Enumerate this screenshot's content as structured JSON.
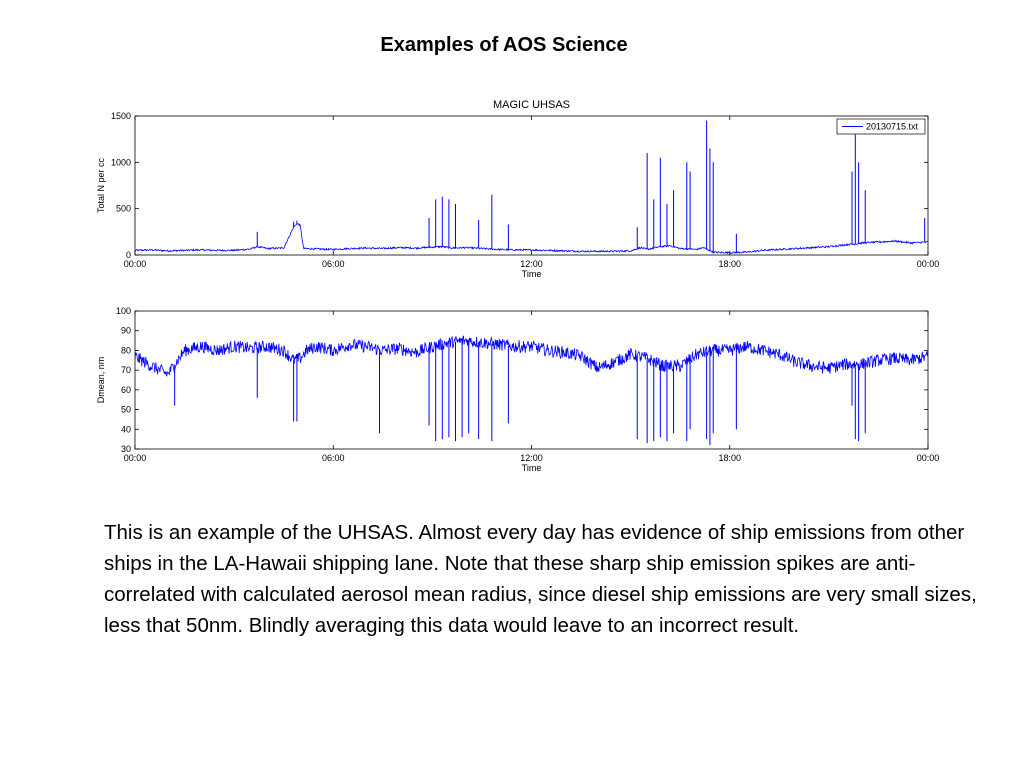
{
  "slide": {
    "title": "Examples of AOS Science",
    "body": "This is an example of the UHSAS. Almost every day has evidence of ship emissions from other ships in the LA-Hawaii shipping lane. Note that these sharp ship emission spikes are anti-correlated with calculated aerosol mean radius, since diesel ship emissions are very small sizes, less that 50nm. Blindly averaging this data would leave to an incorrect result."
  },
  "colors": {
    "series": "#0000ff",
    "axes": "#000000",
    "background": "#ffffff"
  },
  "chart_data": [
    {
      "type": "line",
      "title": "MAGIC   UHSAS",
      "xlabel": "Time",
      "ylabel": "Total N per cc",
      "xlim": [
        0,
        24
      ],
      "ylim": [
        0,
        1500
      ],
      "x_ticks": [
        0,
        6,
        12,
        18,
        24
      ],
      "x_tick_labels": [
        "00:00",
        "06:00",
        "12:00",
        "18:00",
        "00:00"
      ],
      "y_ticks": [
        0,
        500,
        1000,
        1500
      ],
      "y_tick_labels": [
        "0",
        "500",
        "1000",
        "1500"
      ],
      "grid": false,
      "legend": {
        "entries": [
          "20130715.txt"
        ],
        "placement": "top-right"
      },
      "series": [
        {
          "name": "20130715.txt",
          "x": [
            0,
            0.5,
            1,
            1.5,
            2,
            2.5,
            3,
            3.5,
            3.7,
            4,
            4.5,
            4.8,
            4.9,
            5.0,
            5.1,
            5.5,
            6,
            6.5,
            7,
            7.5,
            8,
            8.5,
            9,
            9.3,
            9.5,
            9.7,
            10,
            10.5,
            11,
            11.5,
            12,
            12.5,
            13,
            13.5,
            14,
            14.5,
            15,
            15.3,
            15.5,
            15.9,
            16.2,
            16.5,
            17,
            17.2,
            17.5,
            18,
            18.5,
            19,
            19.5,
            20,
            20.5,
            21,
            21.5,
            21.8,
            22,
            22.5,
            23,
            23.5,
            24
          ],
          "values": [
            50,
            55,
            45,
            50,
            55,
            50,
            50,
            65,
            90,
            70,
            75,
            300,
            340,
            320,
            70,
            65,
            60,
            70,
            75,
            70,
            80,
            75,
            85,
            90,
            80,
            75,
            80,
            70,
            60,
            55,
            55,
            50,
            45,
            40,
            40,
            40,
            45,
            80,
            60,
            90,
            100,
            70,
            60,
            80,
            30,
            25,
            30,
            50,
            60,
            70,
            80,
            90,
            110,
            120,
            130,
            140,
            150,
            130,
            140
          ]
        }
      ],
      "spikes": {
        "x": [
          3.7,
          4.8,
          4.9,
          8.9,
          9.1,
          9.3,
          9.5,
          9.7,
          10.4,
          10.8,
          11.3,
          15.2,
          15.5,
          15.7,
          15.9,
          16.1,
          16.3,
          16.7,
          16.8,
          17.3,
          17.4,
          17.5,
          18.2,
          21.7,
          21.8,
          21.9,
          22.1,
          23.9
        ],
        "values": [
          250,
          360,
          370,
          400,
          600,
          630,
          600,
          550,
          380,
          650,
          330,
          300,
          1100,
          600,
          1050,
          550,
          700,
          1000,
          900,
          1450,
          1150,
          1000,
          230,
          900,
          1300,
          1000,
          700,
          400
        ]
      }
    },
    {
      "type": "line",
      "title": "",
      "xlabel": "Time",
      "ylabel": "Dmean, nm",
      "xlim": [
        0,
        24
      ],
      "ylim": [
        30,
        100
      ],
      "x_ticks": [
        0,
        6,
        12,
        18,
        24
      ],
      "x_tick_labels": [
        "00:00",
        "06:00",
        "12:00",
        "18:00",
        "00:00"
      ],
      "y_ticks": [
        30,
        40,
        50,
        60,
        70,
        80,
        90,
        100
      ],
      "y_tick_labels": [
        "30",
        "40",
        "50",
        "60",
        "70",
        "80",
        "90",
        "100"
      ],
      "grid": false,
      "series": [
        {
          "name": "",
          "x": [
            0,
            0.5,
            1,
            1.5,
            2,
            2.5,
            3,
            3.5,
            4,
            4.5,
            4.8,
            5.0,
            5.2,
            5.5,
            6,
            6.5,
            7,
            7.5,
            8,
            8.5,
            9,
            9.5,
            10,
            10.5,
            11,
            11.5,
            12,
            12.5,
            13,
            13.5,
            14,
            14.5,
            15,
            15.5,
            16,
            16.5,
            17,
            17.5,
            18,
            18.5,
            19,
            19.5,
            20,
            20.5,
            21,
            21.5,
            22,
            22.5,
            23,
            23.5,
            24
          ],
          "values": [
            77,
            72,
            68,
            80,
            82,
            80,
            82,
            81,
            82,
            80,
            75,
            76,
            80,
            82,
            80,
            83,
            82,
            80,
            81,
            79,
            82,
            84,
            85,
            84,
            83,
            82,
            82,
            80,
            79,
            77,
            71,
            74,
            78,
            76,
            72,
            72,
            78,
            80,
            80,
            82,
            80,
            78,
            74,
            72,
            71,
            73,
            73,
            75,
            76,
            75,
            77
          ]
        }
      ],
      "spikes": {
        "x": [
          1.2,
          3.7,
          4.8,
          4.9,
          7.4,
          8.9,
          9.1,
          9.3,
          9.5,
          9.7,
          9.9,
          10.1,
          10.4,
          10.8,
          11.3,
          15.2,
          15.5,
          15.7,
          15.9,
          16.1,
          16.3,
          16.7,
          16.8,
          17.3,
          17.4,
          17.5,
          18.2,
          21.7,
          21.8,
          21.9,
          22.1
        ],
        "values": [
          52,
          56,
          44,
          44,
          38,
          42,
          34,
          35,
          36,
          34,
          36,
          38,
          35,
          34,
          43,
          35,
          33,
          34,
          36,
          34,
          38,
          34,
          40,
          35,
          32,
          38,
          40,
          52,
          35,
          34,
          38
        ]
      }
    }
  ]
}
